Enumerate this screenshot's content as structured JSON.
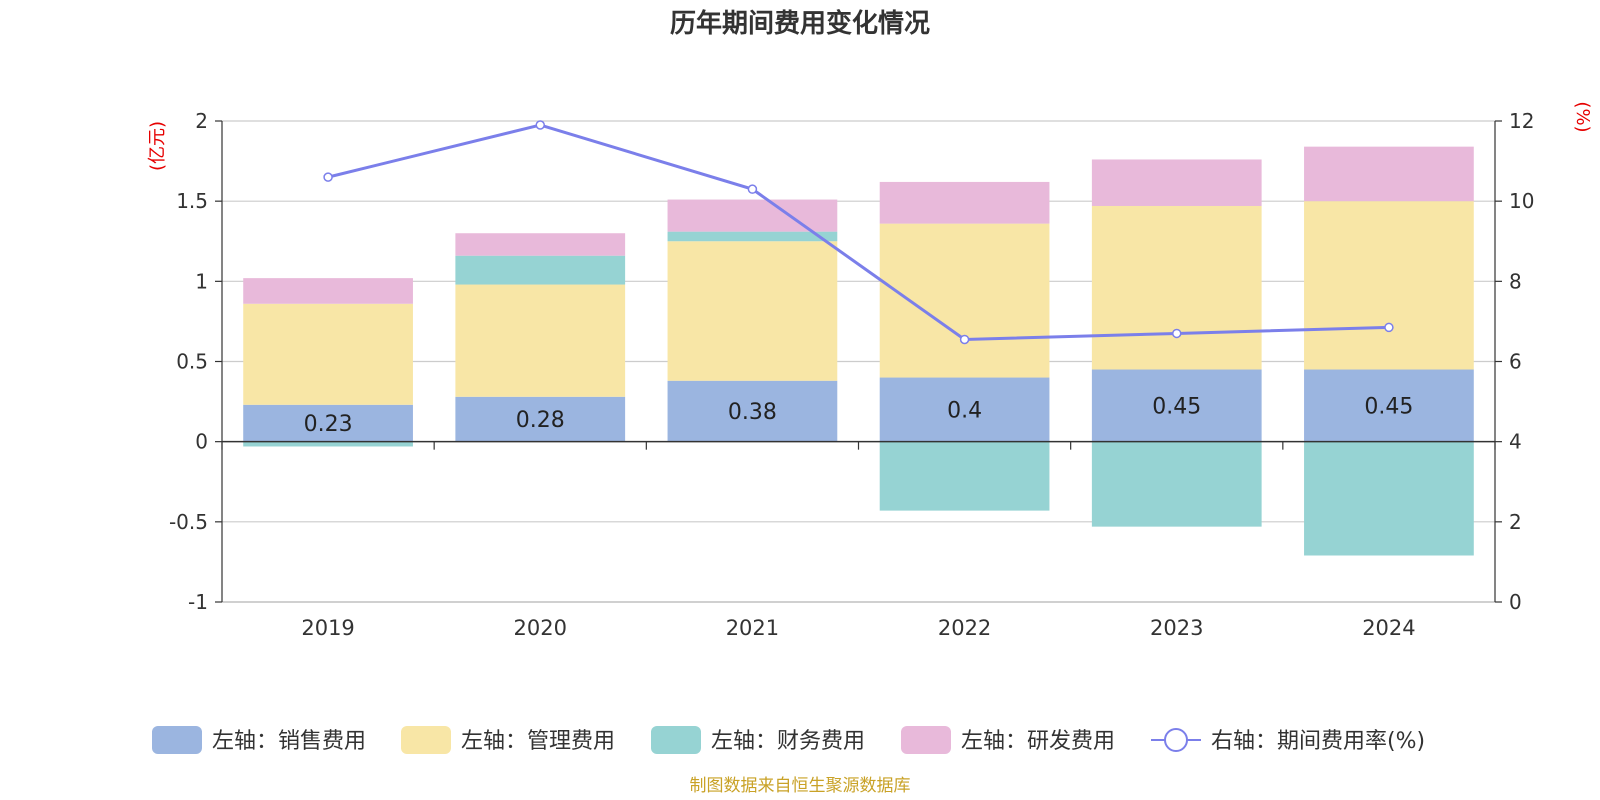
{
  "chart_data": {
    "type": "bar",
    "stacked": true,
    "title": "历年期间费用变化情况",
    "categories": [
      "2019",
      "2020",
      "2021",
      "2022",
      "2023",
      "2024"
    ],
    "left_axis": {
      "unit": "(亿元)",
      "ylim": [
        -1,
        2
      ],
      "ticks": [
        2,
        1.5,
        1,
        0.5,
        0,
        -0.5,
        -1
      ],
      "tick_labels": [
        "2",
        "1.5",
        "1",
        "0.5",
        "0",
        "-0.5",
        "-1"
      ]
    },
    "right_axis": {
      "unit": "(%)",
      "ylim": [
        0,
        12
      ],
      "ticks": [
        12,
        10,
        8,
        6,
        4,
        2,
        0
      ],
      "tick_labels": [
        "12",
        "10",
        "8",
        "6",
        "4",
        "2",
        "0"
      ]
    },
    "series": [
      {
        "name": "左轴：销售费用",
        "axis": "left",
        "color": "#9bb5e0",
        "values": [
          0.23,
          0.28,
          0.38,
          0.4,
          0.45,
          0.45
        ],
        "labels": [
          "0.23",
          "0.28",
          "0.38",
          "0.4",
          "0.45",
          "0.45"
        ]
      },
      {
        "name": "左轴：管理费用",
        "axis": "left",
        "color": "#f8e6a6",
        "values": [
          0.63,
          0.7,
          0.87,
          0.96,
          1.02,
          1.05
        ]
      },
      {
        "name": "左轴：财务费用",
        "axis": "left",
        "color": "#96d3d3",
        "values": [
          -0.03,
          0.18,
          0.06,
          -0.43,
          -0.53,
          -0.71
        ]
      },
      {
        "name": "左轴：研发费用",
        "axis": "left",
        "color": "#e8b9da",
        "values": [
          0.16,
          0.14,
          0.2,
          0.26,
          0.29,
          0.34
        ]
      },
      {
        "name": "右轴：期间费用率(%)",
        "axis": "right",
        "type": "line",
        "color": "#7b7fea",
        "values": [
          10.6,
          11.9,
          10.3,
          6.55,
          6.7,
          6.85
        ]
      }
    ],
    "grid": true,
    "legend_position": "bottom"
  },
  "footer": {
    "source": "制图数据来自恒生聚源数据库"
  }
}
